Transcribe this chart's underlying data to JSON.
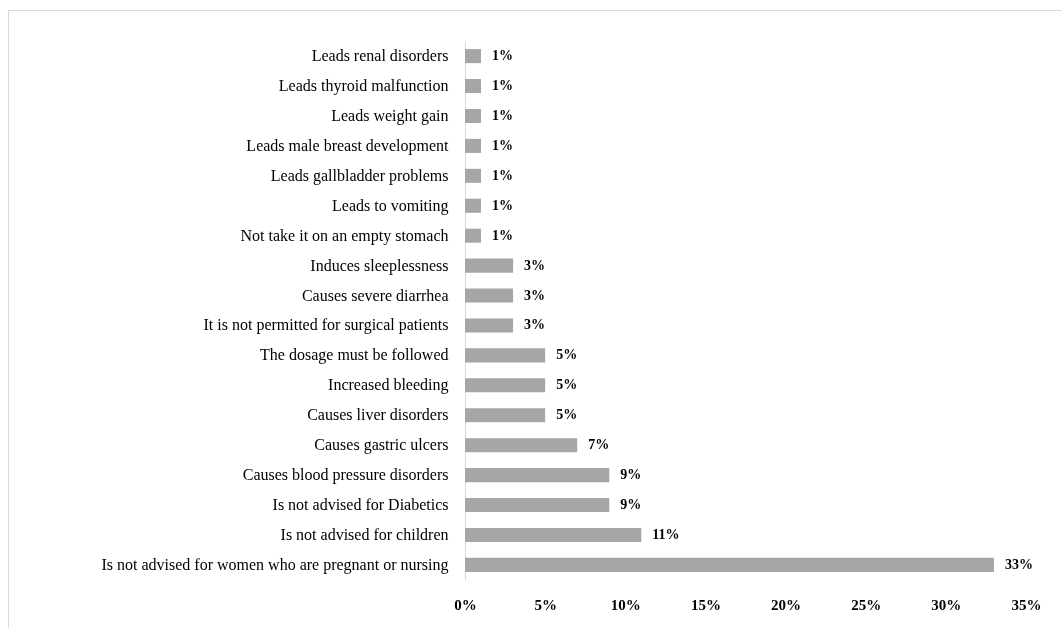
{
  "chart_data": {
    "type": "bar",
    "orientation": "horizontal",
    "categories": [
      "Leads renal disorders",
      "Leads thyroid malfunction",
      "Leads weight gain",
      "Leads male breast development",
      "Leads gallbladder problems",
      "Leads to vomiting",
      "Not take it on an empty stomach",
      "Induces sleeplessness",
      "Causes severe diarrhea",
      "It is not permitted for surgical patients",
      "The dosage must be followed",
      "Increased bleeding",
      "Causes liver disorders",
      "Causes gastric ulcers",
      "Causes blood pressure disorders",
      "Is not advised for Diabetics",
      "Is not advised for children",
      "Is not advised for women who are pregnant or nursing"
    ],
    "values": [
      1,
      1,
      1,
      1,
      1,
      1,
      1,
      3,
      3,
      3,
      5,
      5,
      5,
      7,
      9,
      9,
      11,
      33
    ],
    "value_labels": [
      "1%",
      "1%",
      "1%",
      "1%",
      "1%",
      "1%",
      "1%",
      "3%",
      "3%",
      "3%",
      "5%",
      "5%",
      "5%",
      "7%",
      "9%",
      "9%",
      "11%",
      "33%"
    ],
    "color": "#a6a6a6",
    "xlim": [
      0,
      35
    ],
    "xticks": [
      {
        "value": 0,
        "label": "0%"
      },
      {
        "value": 5,
        "label": "5%"
      },
      {
        "value": 10,
        "label": "10%"
      },
      {
        "value": 15,
        "label": "15%"
      },
      {
        "value": 20,
        "label": "20%"
      },
      {
        "value": 25,
        "label": "25%"
      },
      {
        "value": 30,
        "label": "30%"
      },
      {
        "value": 35,
        "label": "35%"
      }
    ]
  }
}
